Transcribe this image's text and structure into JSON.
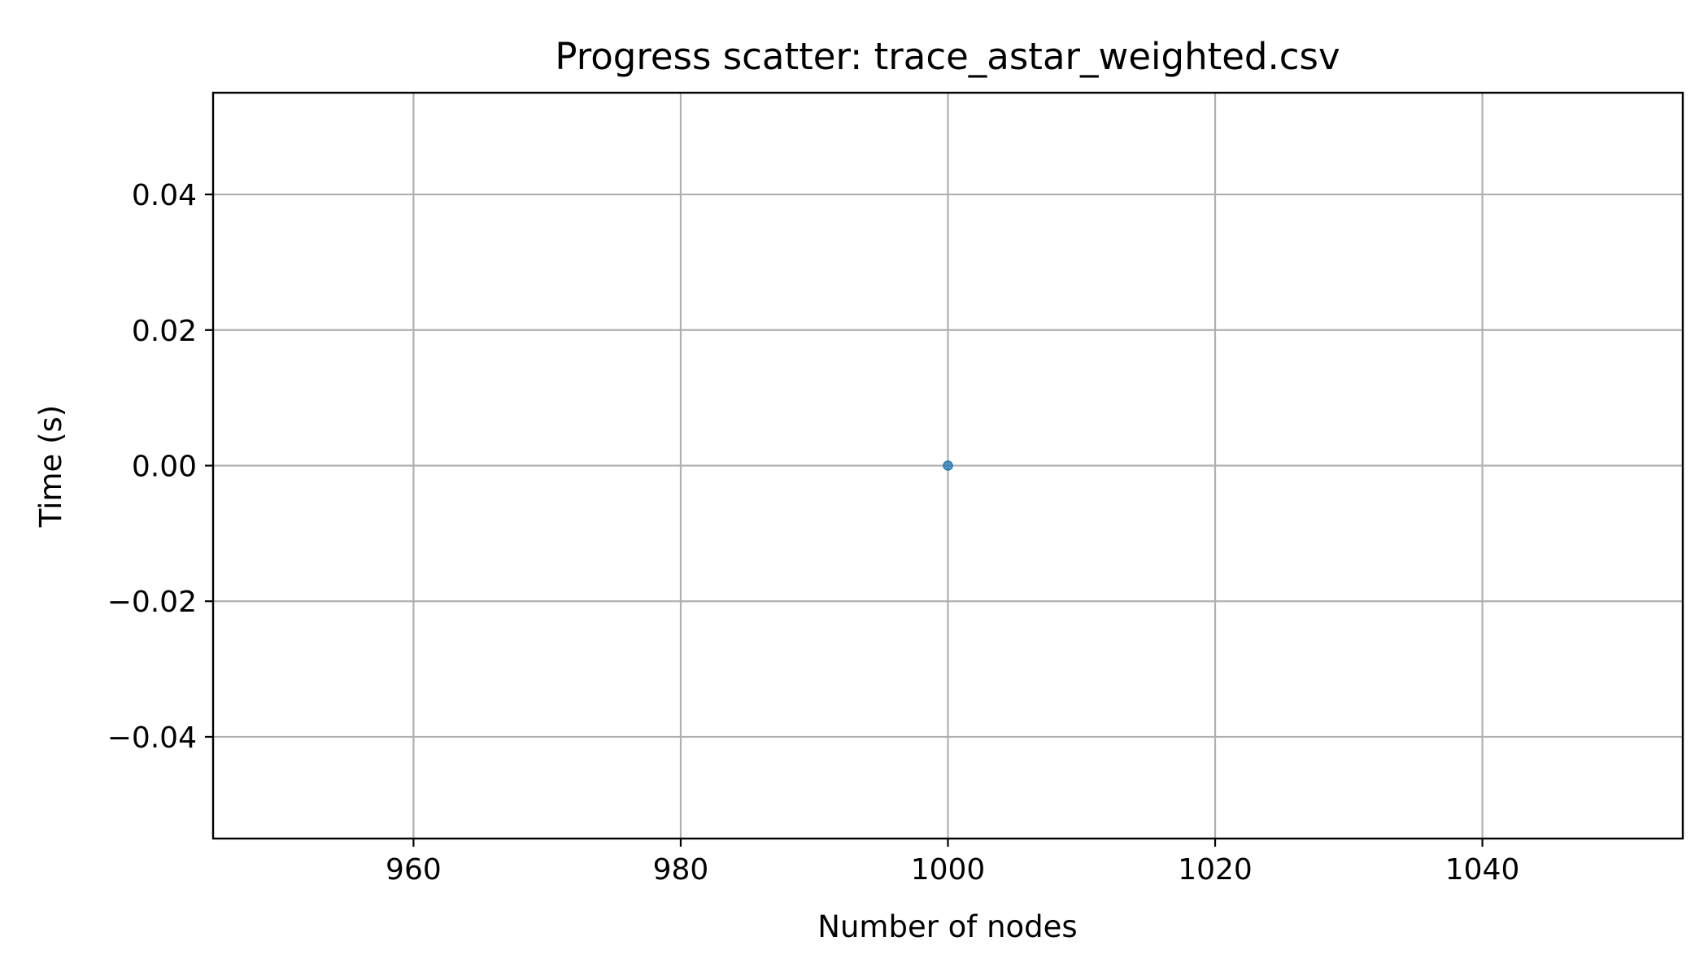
{
  "chart_data": {
    "type": "scatter",
    "title": "Progress scatter: trace_astar_weighted.csv",
    "xlabel": "Number of nodes",
    "ylabel": "Time (s)",
    "xlim": [
      945,
      1055
    ],
    "ylim": [
      -0.055,
      0.055
    ],
    "xticks": [
      960,
      980,
      1000,
      1020,
      1040
    ],
    "xtick_labels": [
      "960",
      "980",
      "1000",
      "1020",
      "1040"
    ],
    "yticks": [
      -0.04,
      -0.02,
      0.0,
      0.02,
      0.04
    ],
    "ytick_labels": [
      "−0.04",
      "−0.02",
      "0.00",
      "0.02",
      "0.04"
    ],
    "grid": true,
    "series": [
      {
        "x": [
          1000
        ],
        "y": [
          0.0
        ],
        "color": "#1f77b4"
      }
    ]
  }
}
